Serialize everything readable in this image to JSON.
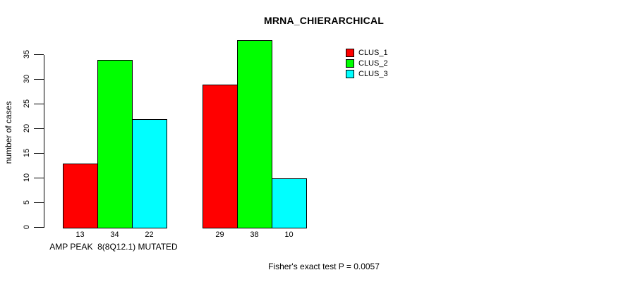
{
  "chart_data": {
    "type": "bar",
    "title": "MRNA_CHIERARCHICAL",
    "ylabel": "number of cases",
    "xlabel": "",
    "ylim": [
      0,
      38
    ],
    "yticks": [
      0,
      5,
      10,
      15,
      20,
      25,
      30,
      35
    ],
    "grid": false,
    "legend_position": "top-right",
    "categories": [
      "AMP PEAK  8(8Q12.1) MUTATED",
      ""
    ],
    "series": [
      {
        "name": "CLUS_1",
        "color": "#ff0000",
        "values": [
          13,
          29
        ]
      },
      {
        "name": "CLUS_2",
        "color": "#00ff00",
        "values": [
          34,
          38
        ]
      },
      {
        "name": "CLUS_3",
        "color": "#00ffff",
        "values": [
          22,
          10
        ]
      }
    ],
    "bar_value_labels": [
      [
        13,
        34,
        22
      ],
      [
        29,
        38,
        10
      ]
    ],
    "bar_border_color": "#000000",
    "footnote": "Fisher's exact test P = 0.0057"
  }
}
